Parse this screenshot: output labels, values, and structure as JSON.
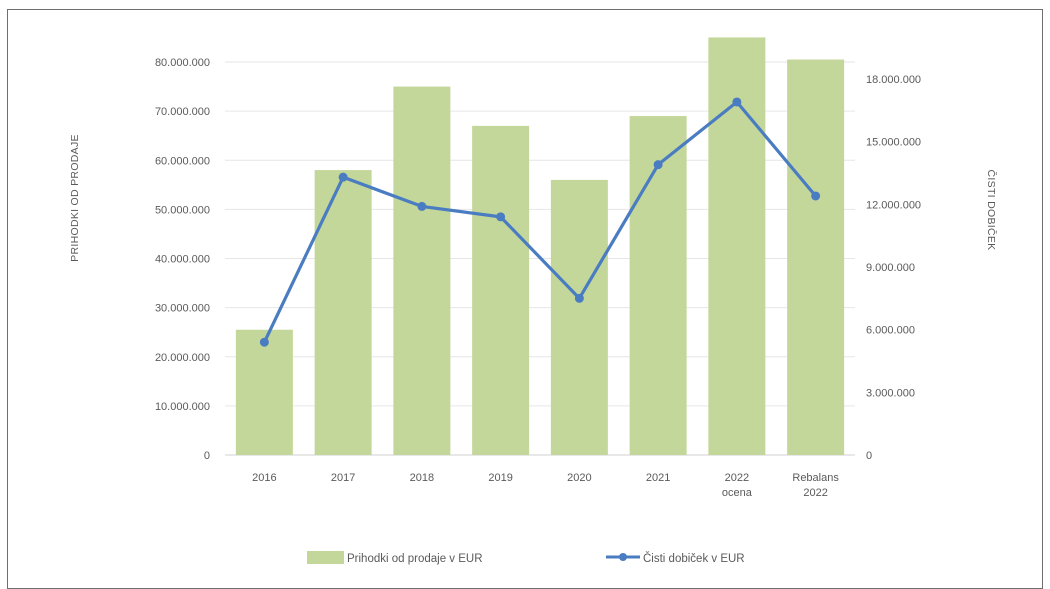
{
  "chart_data": {
    "type": "bar+line",
    "categories": [
      [
        "2016"
      ],
      [
        "2017"
      ],
      [
        "2018"
      ],
      [
        "2019"
      ],
      [
        "2020"
      ],
      [
        "2021"
      ],
      [
        "2022",
        "ocena"
      ],
      [
        "Rebalans",
        "2022"
      ]
    ],
    "series": [
      {
        "name": "Prihodki od prodaje v EUR",
        "type": "bar",
        "axis": "left",
        "color": "#c4d79b",
        "values": [
          25500000,
          58000000,
          75000000,
          67000000,
          56000000,
          69000000,
          85000000,
          80500000
        ]
      },
      {
        "name": "Čisti dobiček v EUR",
        "type": "line",
        "axis": "right",
        "color": "#4a7cc1",
        "values": [
          5400000,
          13300000,
          11900000,
          11400000,
          7500000,
          13900000,
          16900000,
          12400000
        ]
      }
    ],
    "y_left": {
      "label": "PRIHODKI OD PRODAJE",
      "range": [
        0,
        80000000
      ],
      "ticks": [
        0,
        10000000,
        20000000,
        30000000,
        40000000,
        50000000,
        60000000,
        70000000,
        80000000
      ],
      "tick_labels": [
        "0",
        "10.000.000",
        "20.000.000",
        "30.000.000",
        "40.000.000",
        "50.000.000",
        "60.000.000",
        "70.000.000",
        "80.000.000"
      ]
    },
    "y_right": {
      "label": "ČISTI DOBIČEK",
      "range": [
        0,
        18000000
      ],
      "ticks": [
        0,
        3000000,
        6000000,
        9000000,
        12000000,
        15000000,
        18000000
      ],
      "tick_labels": [
        "0",
        "3.000.000",
        "6.000.000",
        "9.000.000",
        "12.000.000",
        "15.000.000",
        "18.000.000"
      ]
    },
    "grid": true,
    "legend": "bottom"
  }
}
